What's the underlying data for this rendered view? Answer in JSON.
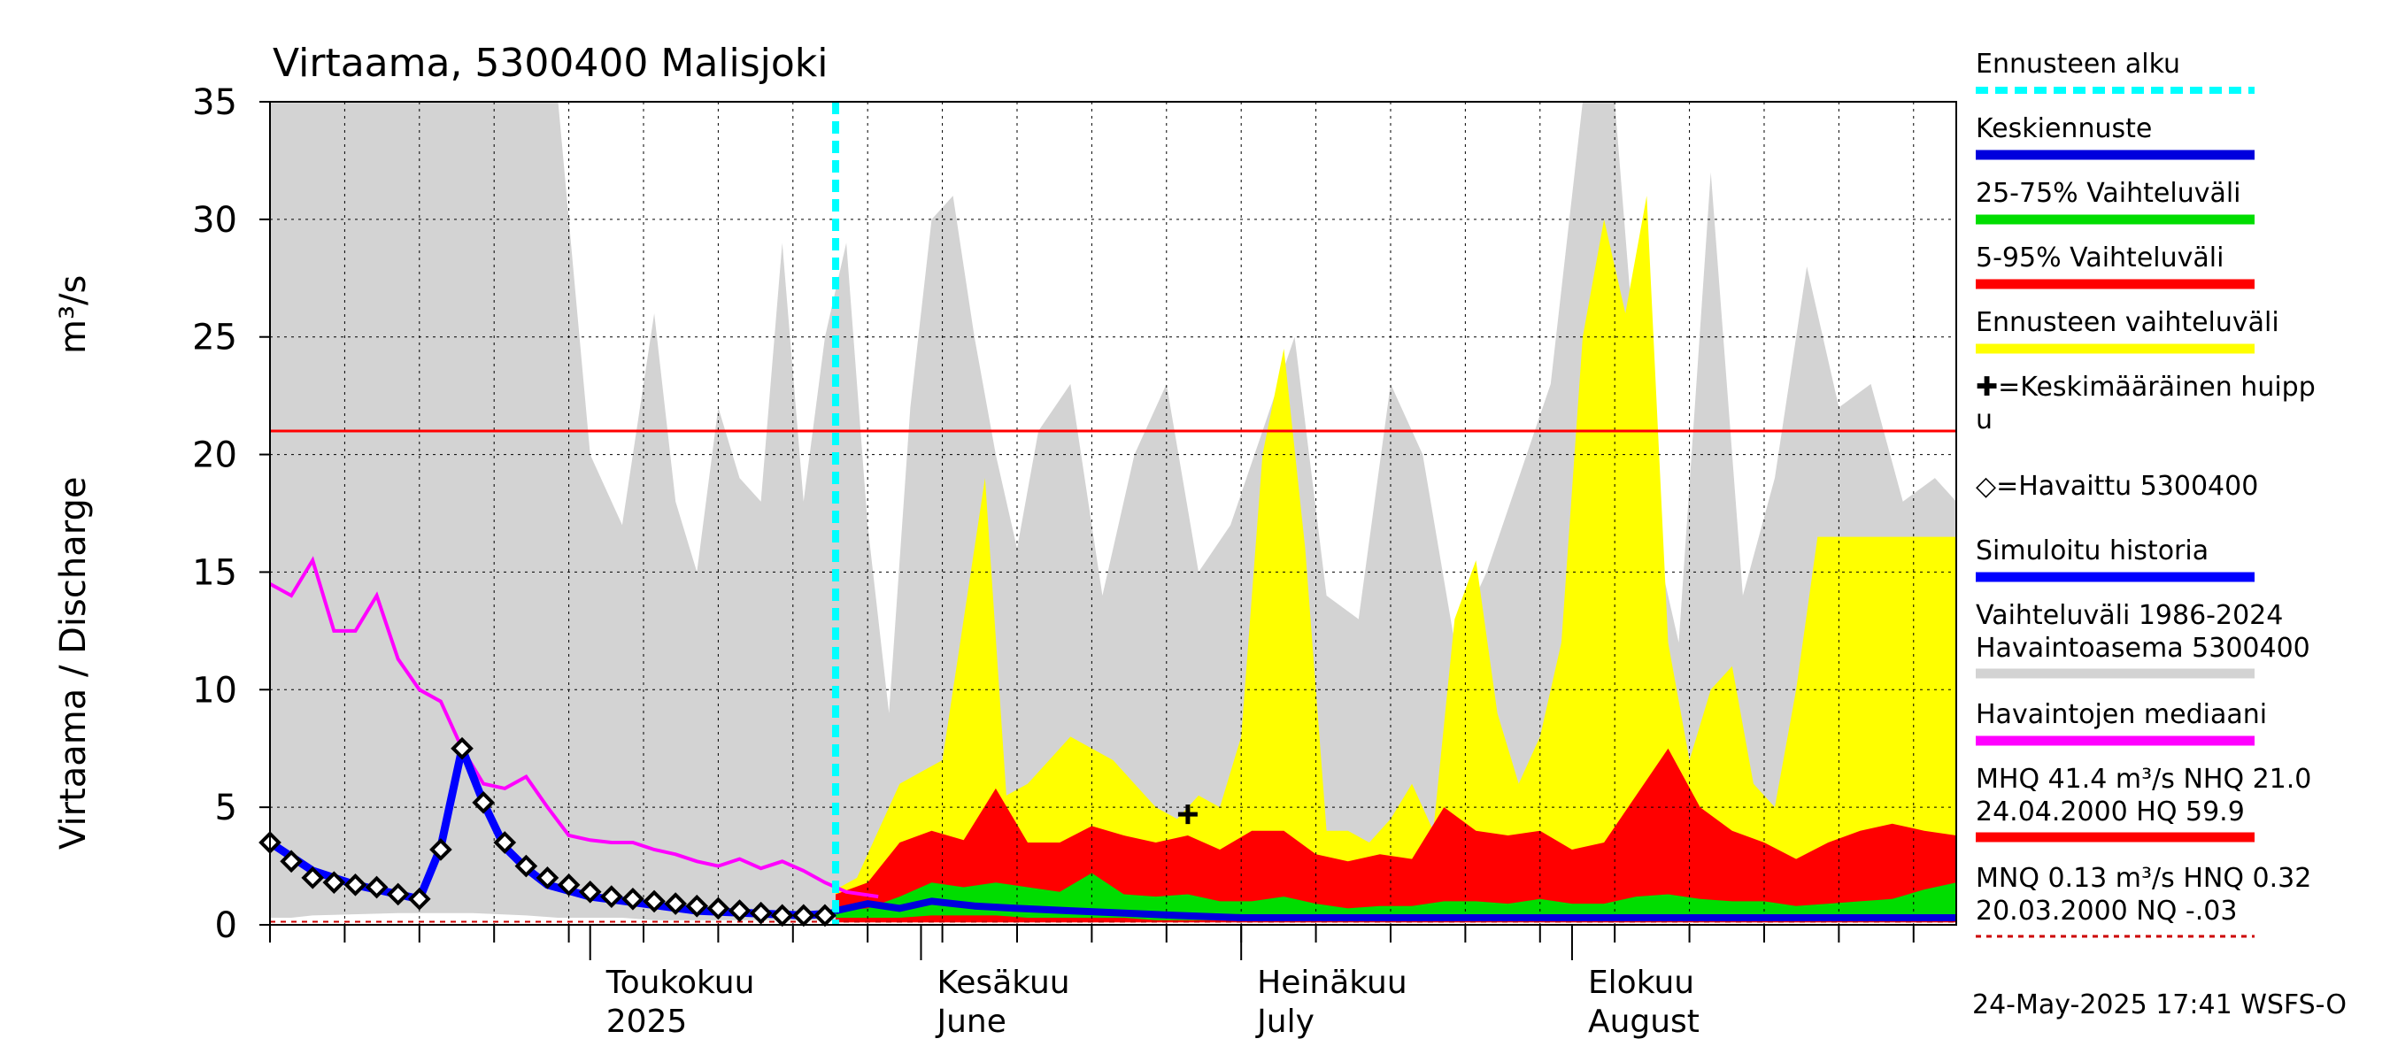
{
  "chart_data": {
    "type": "area",
    "title": "Virtaama, 5300400 Malisjoki",
    "ylabel": "Virtaama / Discharge",
    "yunit": "m³/s",
    "ylim": [
      0,
      35
    ],
    "yticks": [
      0,
      5,
      10,
      15,
      20,
      25,
      30,
      35
    ],
    "x_start": "2025-04-01",
    "x_end": "2025-09-06",
    "grid": true,
    "months": [
      {
        "date": "2025-05-01",
        "line1": "Toukokuu",
        "line2": "2025"
      },
      {
        "date": "2025-06-01",
        "line1": "Kesäkuu",
        "line2": "June"
      },
      {
        "date": "2025-07-01",
        "line1": "Heinäkuu",
        "line2": "July"
      },
      {
        "date": "2025-08-01",
        "line1": "Elokuu",
        "line2": "August"
      }
    ],
    "forecast_start": "2025-05-24",
    "nhq_line": 21.0,
    "nq_line": 0.13,
    "historical_range": {
      "name": "Vaihteluväli 1986-2024 Havaintoasema 5300400",
      "color": "#d3d3d3",
      "dates": [
        "2025-04-01",
        "2025-04-03",
        "2025-04-05",
        "2025-04-13",
        "2025-04-20",
        "2025-04-25",
        "2025-04-28",
        "2025-05-01",
        "2025-05-04",
        "2025-05-07",
        "2025-05-09",
        "2025-05-11",
        "2025-05-13",
        "2025-05-15",
        "2025-05-17",
        "2025-05-19",
        "2025-05-21",
        "2025-05-23",
        "2025-05-25",
        "2025-05-27",
        "2025-05-29",
        "2025-05-31",
        "2025-06-02",
        "2025-06-04",
        "2025-06-06",
        "2025-06-08",
        "2025-06-10",
        "2025-06-12",
        "2025-06-15",
        "2025-06-18",
        "2025-06-21",
        "2025-06-24",
        "2025-06-27",
        "2025-06-30",
        "2025-07-03",
        "2025-07-06",
        "2025-07-09",
        "2025-07-12",
        "2025-07-15",
        "2025-07-18",
        "2025-07-21",
        "2025-07-24",
        "2025-07-27",
        "2025-07-30",
        "2025-08-02",
        "2025-08-05",
        "2025-08-08",
        "2025-08-11",
        "2025-08-14",
        "2025-08-17",
        "2025-08-20",
        "2025-08-23",
        "2025-08-26",
        "2025-08-29",
        "2025-09-01",
        "2025-09-04",
        "2025-09-06"
      ],
      "upper": [
        35,
        35,
        35,
        35,
        35,
        35,
        35,
        20,
        17,
        26,
        18,
        15,
        22,
        19,
        18,
        29,
        18,
        25,
        29,
        17,
        9,
        22,
        30,
        31,
        25,
        20,
        16,
        21,
        23,
        14,
        20,
        23,
        15,
        17,
        21,
        25,
        14,
        13,
        23,
        20,
        12,
        15,
        19,
        23,
        35,
        35,
        18,
        12,
        32,
        14,
        19,
        28,
        22,
        23,
        18,
        19,
        18
      ],
      "lower": [
        0.3,
        0.3,
        0.4,
        0.5,
        0.5,
        0.4,
        0.3,
        0.3,
        0.3,
        0.2,
        0.2,
        0.2,
        0.2,
        0.2,
        0.2,
        0.2,
        0.2,
        0.2,
        0.2,
        0.2,
        0.2,
        0.2,
        0.2,
        0.2,
        0.2,
        0.2,
        0.2,
        0.2,
        0.2,
        0.2,
        0.2,
        0.2,
        0.2,
        0.2,
        0.2,
        0.2,
        0.2,
        0.2,
        0.2,
        0.2,
        0.2,
        0.2,
        0.2,
        0.2,
        0.2,
        0.2,
        0.2,
        0.2,
        0.2,
        0.2,
        0.2,
        0.2,
        0.2,
        0.2,
        0.2,
        0.2,
        0.2
      ]
    },
    "forecast_range": {
      "name": "Ennusteen vaihteluväli",
      "color": "#ffff00",
      "dates": [
        "2025-05-24",
        "2025-05-26",
        "2025-05-28",
        "2025-05-30",
        "2025-06-01",
        "2025-06-03",
        "2025-06-05",
        "2025-06-07",
        "2025-06-09",
        "2025-06-11",
        "2025-06-13",
        "2025-06-15",
        "2025-06-17",
        "2025-06-19",
        "2025-06-21",
        "2025-06-23",
        "2025-06-25",
        "2025-06-27",
        "2025-06-29",
        "2025-07-01",
        "2025-07-03",
        "2025-07-05",
        "2025-07-07",
        "2025-07-09",
        "2025-07-11",
        "2025-07-13",
        "2025-07-15",
        "2025-07-17",
        "2025-07-19",
        "2025-07-21",
        "2025-07-23",
        "2025-07-25",
        "2025-07-27",
        "2025-07-29",
        "2025-07-31",
        "2025-08-02",
        "2025-08-04",
        "2025-08-06",
        "2025-08-08",
        "2025-08-10",
        "2025-08-12",
        "2025-08-14",
        "2025-08-16",
        "2025-08-18",
        "2025-08-20",
        "2025-08-22",
        "2025-08-24",
        "2025-08-26",
        "2025-08-28",
        "2025-08-30",
        "2025-09-01",
        "2025-09-03",
        "2025-09-05",
        "2025-09-06"
      ],
      "upper": [
        1.5,
        2.0,
        4.0,
        6.0,
        6.5,
        7.0,
        13.0,
        19.0,
        5.5,
        6.0,
        7.0,
        8.0,
        7.5,
        7.0,
        6.0,
        5.0,
        4.5,
        5.5,
        5.0,
        8.0,
        20.0,
        24.5,
        16.0,
        4.0,
        4.0,
        3.5,
        4.5,
        6.0,
        4.0,
        13.0,
        15.5,
        9.0,
        6.0,
        8.0,
        12.0,
        25.0,
        30.0,
        26.0,
        31.0,
        12.0,
        7.0,
        10.0,
        11.0,
        6.0,
        5.0,
        10.0,
        16.5,
        16.5,
        16.5,
        16.5,
        16.5,
        16.5,
        16.5,
        16.5
      ],
      "lower": [
        0.2,
        0.2,
        0.2,
        0.2,
        0.2,
        0.2,
        0.2,
        0.2,
        0.2,
        0.2,
        0.2,
        0.2,
        0.2,
        0.2,
        0.2,
        0.2,
        0.2,
        0.2,
        0.2,
        0.2,
        0.2,
        0.2,
        0.2,
        0.2,
        0.2,
        0.2,
        0.2,
        0.2,
        0.2,
        0.2,
        0.2,
        0.2,
        0.2,
        0.2,
        0.2,
        0.2,
        0.2,
        0.2,
        0.2,
        0.2,
        0.2,
        0.2,
        0.2,
        0.2,
        0.2,
        0.2,
        0.2,
        0.2,
        0.2,
        0.2,
        0.2,
        0.2,
        0.2,
        0.2
      ]
    },
    "range_5_95": {
      "name": "5-95% Vaihteluväli",
      "color": "#ff0000",
      "dates": [
        "2025-05-24",
        "2025-05-27",
        "2025-05-30",
        "2025-06-02",
        "2025-06-05",
        "2025-06-08",
        "2025-06-11",
        "2025-06-14",
        "2025-06-17",
        "2025-06-20",
        "2025-06-23",
        "2025-06-26",
        "2025-06-29",
        "2025-07-02",
        "2025-07-05",
        "2025-07-08",
        "2025-07-11",
        "2025-07-14",
        "2025-07-17",
        "2025-07-20",
        "2025-07-23",
        "2025-07-26",
        "2025-07-29",
        "2025-08-01",
        "2025-08-04",
        "2025-08-07",
        "2025-08-10",
        "2025-08-13",
        "2025-08-16",
        "2025-08-19",
        "2025-08-22",
        "2025-08-25",
        "2025-08-28",
        "2025-08-31",
        "2025-09-03",
        "2025-09-06"
      ],
      "upper": [
        1.3,
        1.8,
        3.5,
        4.0,
        3.6,
        5.8,
        3.5,
        3.5,
        4.2,
        3.8,
        3.5,
        3.8,
        3.2,
        4.0,
        4.0,
        3.0,
        2.7,
        3.0,
        2.8,
        5.0,
        4.0,
        3.8,
        4.0,
        3.2,
        3.5,
        5.5,
        7.5,
        5.0,
        4.0,
        3.5,
        2.8,
        3.5,
        4.0,
        4.3,
        4.0,
        3.8
      ],
      "lower": [
        0.1,
        0.1,
        0.1,
        0.1,
        0.1,
        0.1,
        0.1,
        0.1,
        0.1,
        0.1,
        0.1,
        0.1,
        0.1,
        0.1,
        0.1,
        0.1,
        0.1,
        0.1,
        0.1,
        0.1,
        0.1,
        0.1,
        0.1,
        0.1,
        0.1,
        0.1,
        0.1,
        0.1,
        0.1,
        0.1,
        0.1,
        0.1,
        0.1,
        0.1,
        0.1,
        0.1
      ]
    },
    "range_25_75": {
      "name": "25-75% Vaihteluväli",
      "color": "#00dd00",
      "dates": [
        "2025-05-24",
        "2025-05-27",
        "2025-05-30",
        "2025-06-02",
        "2025-06-05",
        "2025-06-08",
        "2025-06-11",
        "2025-06-14",
        "2025-06-17",
        "2025-06-20",
        "2025-06-23",
        "2025-06-26",
        "2025-06-29",
        "2025-07-02",
        "2025-07-05",
        "2025-07-08",
        "2025-07-11",
        "2025-07-14",
        "2025-07-17",
        "2025-07-20",
        "2025-07-23",
        "2025-07-26",
        "2025-07-29",
        "2025-08-01",
        "2025-08-04",
        "2025-08-07",
        "2025-08-10",
        "2025-08-13",
        "2025-08-16",
        "2025-08-19",
        "2025-08-22",
        "2025-08-25",
        "2025-08-28",
        "2025-08-31",
        "2025-09-03",
        "2025-09-06"
      ],
      "upper": [
        0.6,
        0.7,
        1.2,
        1.8,
        1.6,
        1.8,
        1.6,
        1.4,
        2.2,
        1.3,
        1.2,
        1.3,
        1.0,
        1.0,
        1.2,
        0.9,
        0.7,
        0.8,
        0.8,
        1.0,
        1.0,
        0.9,
        1.1,
        0.9,
        0.9,
        1.2,
        1.3,
        1.1,
        1.0,
        1.0,
        0.8,
        0.9,
        1.0,
        1.1,
        1.5,
        1.8
      ],
      "lower": [
        0.3,
        0.3,
        0.3,
        0.4,
        0.4,
        0.4,
        0.3,
        0.3,
        0.3,
        0.3,
        0.2,
        0.2,
        0.2,
        0.2,
        0.2,
        0.2,
        0.2,
        0.2,
        0.2,
        0.2,
        0.2,
        0.2,
        0.2,
        0.2,
        0.2,
        0.2,
        0.2,
        0.2,
        0.2,
        0.2,
        0.2,
        0.2,
        0.2,
        0.2,
        0.2,
        0.2
      ]
    },
    "mean_forecast": {
      "name": "Keskiennuste",
      "color": "#0000dd",
      "dates": [
        "2025-05-24",
        "2025-05-27",
        "2025-05-30",
        "2025-06-02",
        "2025-06-06",
        "2025-06-10",
        "2025-06-15",
        "2025-06-20",
        "2025-06-25",
        "2025-07-01",
        "2025-07-08",
        "2025-07-15",
        "2025-07-22",
        "2025-07-29",
        "2025-08-05",
        "2025-08-12",
        "2025-08-19",
        "2025-08-26",
        "2025-09-06"
      ],
      "values": [
        0.6,
        0.9,
        0.7,
        1.0,
        0.8,
        0.7,
        0.6,
        0.5,
        0.4,
        0.3,
        0.3,
        0.3,
        0.3,
        0.3,
        0.3,
        0.3,
        0.3,
        0.3,
        0.3
      ]
    },
    "simulated_history": {
      "name": "Simuloitu historia",
      "color": "#0000ff",
      "dates": [
        "2025-04-01",
        "2025-04-05",
        "2025-04-09",
        "2025-04-13",
        "2025-04-15",
        "2025-04-17",
        "2025-04-19",
        "2025-04-21",
        "2025-04-23",
        "2025-04-25",
        "2025-04-27",
        "2025-05-01",
        "2025-05-06",
        "2025-05-11",
        "2025-05-16",
        "2025-05-21",
        "2025-05-24"
      ],
      "values": [
        3.5,
        2.3,
        1.7,
        1.3,
        1.1,
        3.3,
        7.5,
        5.2,
        3.3,
        2.4,
        1.7,
        1.2,
        0.9,
        0.6,
        0.5,
        0.4,
        0.5
      ]
    },
    "observed": {
      "name": "=Havaittu 5300400",
      "dates": [
        "2025-04-01",
        "2025-04-03",
        "2025-04-05",
        "2025-04-07",
        "2025-04-09",
        "2025-04-11",
        "2025-04-13",
        "2025-04-15",
        "2025-04-17",
        "2025-04-19",
        "2025-04-21",
        "2025-04-23",
        "2025-04-25",
        "2025-04-27",
        "2025-04-29",
        "2025-05-01",
        "2025-05-03",
        "2025-05-05",
        "2025-05-07",
        "2025-05-09",
        "2025-05-11",
        "2025-05-13",
        "2025-05-15",
        "2025-05-17",
        "2025-05-19",
        "2025-05-21",
        "2025-05-23"
      ],
      "values": [
        3.5,
        2.7,
        2.0,
        1.8,
        1.7,
        1.6,
        1.3,
        1.1,
        3.2,
        7.5,
        5.2,
        3.5,
        2.5,
        2.0,
        1.7,
        1.4,
        1.2,
        1.1,
        1.0,
        0.9,
        0.8,
        0.7,
        0.6,
        0.5,
        0.4,
        0.4,
        0.4
      ]
    },
    "observed_median": {
      "name": "Havaintojen mediaani",
      "color": "#ff00ff",
      "dates": [
        "2025-04-01",
        "2025-04-03",
        "2025-04-05",
        "2025-04-07",
        "2025-04-09",
        "2025-04-11",
        "2025-04-13",
        "2025-04-15",
        "2025-04-17",
        "2025-04-19",
        "2025-04-21",
        "2025-04-23",
        "2025-04-25",
        "2025-04-27",
        "2025-04-29",
        "2025-05-01",
        "2025-05-03",
        "2025-05-05",
        "2025-05-07",
        "2025-05-09",
        "2025-05-11",
        "2025-05-13",
        "2025-05-15",
        "2025-05-17",
        "2025-05-19",
        "2025-05-21",
        "2025-05-23",
        "2025-05-25",
        "2025-05-28"
      ],
      "values": [
        14.5,
        14.0,
        15.5,
        12.5,
        12.5,
        14.0,
        11.3,
        10.0,
        9.5,
        7.5,
        6.0,
        5.8,
        6.3,
        5.0,
        3.8,
        3.6,
        3.5,
        3.5,
        3.2,
        3.0,
        2.7,
        2.5,
        2.8,
        2.4,
        2.7,
        2.3,
        1.8,
        1.4,
        1.2
      ]
    },
    "mean_peak": {
      "name": "=Keskimääräinen huippu",
      "date": "2025-06-26",
      "value": 4.7
    },
    "legend": [
      {
        "label": "Ennusteen alku",
        "color": "#00ffff",
        "style": "dashed"
      },
      {
        "label": "Keskiennuste",
        "color": "#0000dd",
        "style": "line"
      },
      {
        "label": "25-75% Vaihteluväli",
        "color": "#00dd00",
        "style": "line"
      },
      {
        "label": "5-95% Vaihteluväli",
        "color": "#ff0000",
        "style": "line"
      },
      {
        "label": "Ennusteen vaihteluväli",
        "color": "#ffff00",
        "style": "line"
      },
      {
        "label": "✚=Keskimääräinen huipp",
        "label2": "u",
        "color": "",
        "style": "none"
      },
      {
        "label": "◇=Havaittu 5300400",
        "color": "",
        "style": "none"
      },
      {
        "label": "Simuloitu historia",
        "color": "#0000ff",
        "style": "line"
      },
      {
        "label": "Vaihteluväli 1986-2024",
        "label2": " Havaintoasema 5300400",
        "color": "#d3d3d3",
        "style": "line"
      },
      {
        "label": "Havaintojen mediaani",
        "color": "#ff00ff",
        "style": "line"
      },
      {
        "label": "MHQ 41.4 m³/s NHQ 21.0",
        "label2": "24.04.2000 HQ 59.9",
        "color": "#ff0000",
        "style": "line"
      },
      {
        "label": "MNQ 0.13 m³/s HNQ 0.32",
        "label2": "20.03.2000 NQ -.03",
        "color": "#cc0000",
        "style": "dotted"
      }
    ],
    "footer": "24-May-2025 17:41 WSFS-O"
  }
}
